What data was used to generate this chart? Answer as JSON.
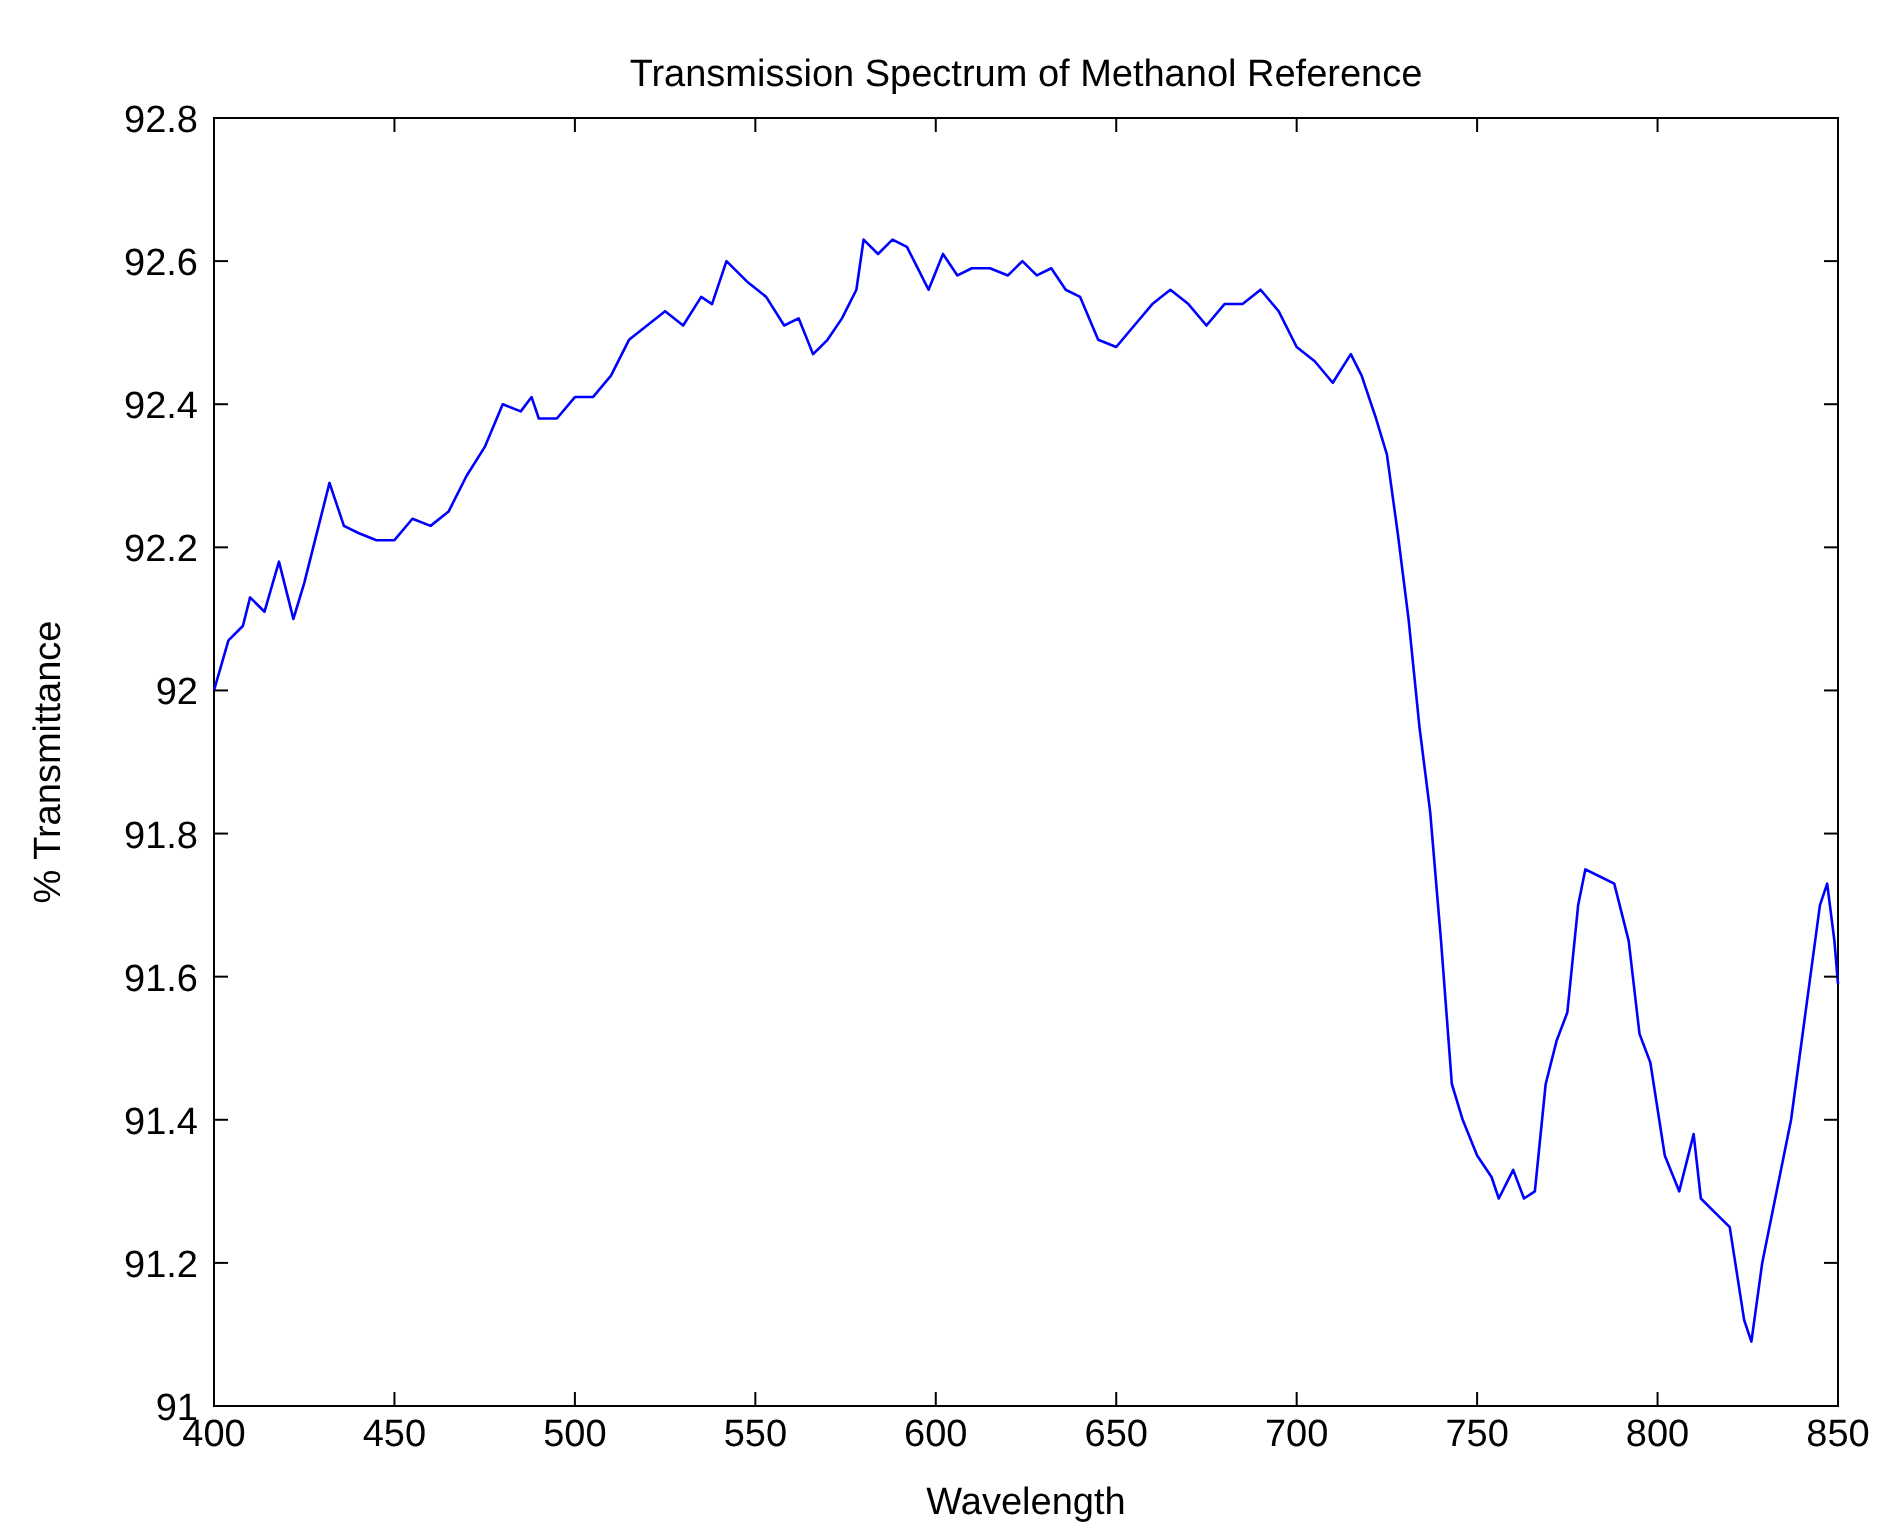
{
  "chart_data": {
    "type": "line",
    "title": "Transmission Spectrum of Methanol Reference",
    "xlabel": "Wavelength",
    "ylabel": "% Transmittance",
    "xlim": [
      400,
      850
    ],
    "xticks": [
      400,
      450,
      500,
      550,
      600,
      650,
      700,
      750,
      800,
      850
    ],
    "ylim": [
      91,
      92.8
    ],
    "yticks": [
      91,
      91.2,
      91.4,
      91.6,
      91.8,
      92,
      92.2,
      92.4,
      92.6,
      92.8
    ],
    "grid": false,
    "series": [
      {
        "color": "#0000ff",
        "x": [
          400,
          404,
          408,
          410,
          414,
          418,
          422,
          425,
          428,
          432,
          436,
          440,
          445,
          450,
          455,
          460,
          465,
          470,
          475,
          480,
          485,
          488,
          490,
          495,
          500,
          505,
          510,
          515,
          520,
          525,
          530,
          535,
          538,
          542,
          548,
          553,
          558,
          562,
          566,
          570,
          574,
          578,
          580,
          584,
          588,
          592,
          596,
          598,
          602,
          606,
          610,
          615,
          620,
          624,
          628,
          632,
          636,
          640,
          645,
          650,
          655,
          660,
          665,
          670,
          675,
          680,
          685,
          690,
          695,
          700,
          705,
          710,
          715,
          718,
          722,
          725,
          728,
          731,
          734,
          737,
          740,
          743,
          746,
          750,
          754,
          756,
          760,
          763,
          766,
          769,
          772,
          775,
          778,
          780,
          784,
          788,
          792,
          795,
          798,
          802,
          806,
          810,
          812,
          816,
          820,
          824,
          826,
          829,
          833,
          837,
          841,
          845,
          847,
          849,
          850
        ],
        "values": [
          92.0,
          92.07,
          92.09,
          92.13,
          92.11,
          92.18,
          92.1,
          92.15,
          92.21,
          92.29,
          92.23,
          92.22,
          92.21,
          92.21,
          92.24,
          92.23,
          92.25,
          92.3,
          92.34,
          92.4,
          92.39,
          92.41,
          92.38,
          92.38,
          92.41,
          92.41,
          92.44,
          92.49,
          92.51,
          92.53,
          92.51,
          92.55,
          92.54,
          92.6,
          92.57,
          92.55,
          92.51,
          92.52,
          92.47,
          92.49,
          92.52,
          92.56,
          92.63,
          92.61,
          92.63,
          92.62,
          92.58,
          92.56,
          92.61,
          92.58,
          92.59,
          92.59,
          92.58,
          92.6,
          92.58,
          92.59,
          92.56,
          92.55,
          92.49,
          92.48,
          92.51,
          92.54,
          92.56,
          92.54,
          92.51,
          92.54,
          92.54,
          92.56,
          92.53,
          92.48,
          92.46,
          92.43,
          92.47,
          92.44,
          92.38,
          92.33,
          92.22,
          92.1,
          91.95,
          91.83,
          91.65,
          91.45,
          91.4,
          91.35,
          91.32,
          91.29,
          91.33,
          91.29,
          91.3,
          91.45,
          91.51,
          91.55,
          91.7,
          91.75,
          91.74,
          91.73,
          91.65,
          91.52,
          91.48,
          91.35,
          91.3,
          91.38,
          91.29,
          91.27,
          91.25,
          91.12,
          91.09,
          91.2,
          91.3,
          91.4,
          91.55,
          91.7,
          91.73,
          91.65,
          91.59
        ]
      }
    ]
  }
}
